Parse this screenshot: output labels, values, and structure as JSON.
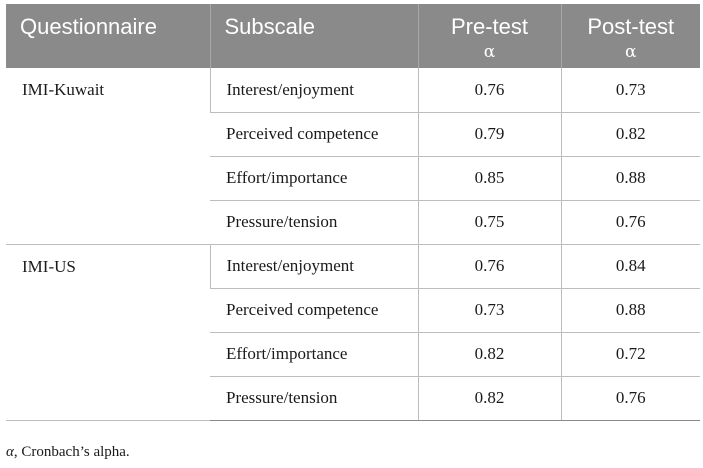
{
  "headers": {
    "questionnaire": "Questionnaire",
    "subscale": "Subscale",
    "pretest": "Pre-test",
    "posttest": "Post-test",
    "alpha": "α"
  },
  "groups": [
    {
      "name": "IMI-Kuwait",
      "rows": [
        {
          "subscale": "Interest/enjoyment",
          "pre": "0.76",
          "post": "0.73"
        },
        {
          "subscale": "Perceived competence",
          "pre": "0.79",
          "post": "0.82"
        },
        {
          "subscale": "Effort/importance",
          "pre": "0.85",
          "post": "0.88"
        },
        {
          "subscale": "Pressure/tension",
          "pre": "0.75",
          "post": "0.76"
        }
      ]
    },
    {
      "name": "IMI-US",
      "rows": [
        {
          "subscale": "Interest/enjoyment",
          "pre": "0.76",
          "post": "0.84"
        },
        {
          "subscale": "Perceived competence",
          "pre": "0.73",
          "post": "0.88"
        },
        {
          "subscale": "Effort/importance",
          "pre": "0.82",
          "post": "0.72"
        },
        {
          "subscale": "Pressure/tension",
          "pre": "0.82",
          "post": "0.76"
        }
      ]
    }
  ],
  "footnote": {
    "symbol": "α",
    "text": ", Cronbach’s alpha."
  }
}
